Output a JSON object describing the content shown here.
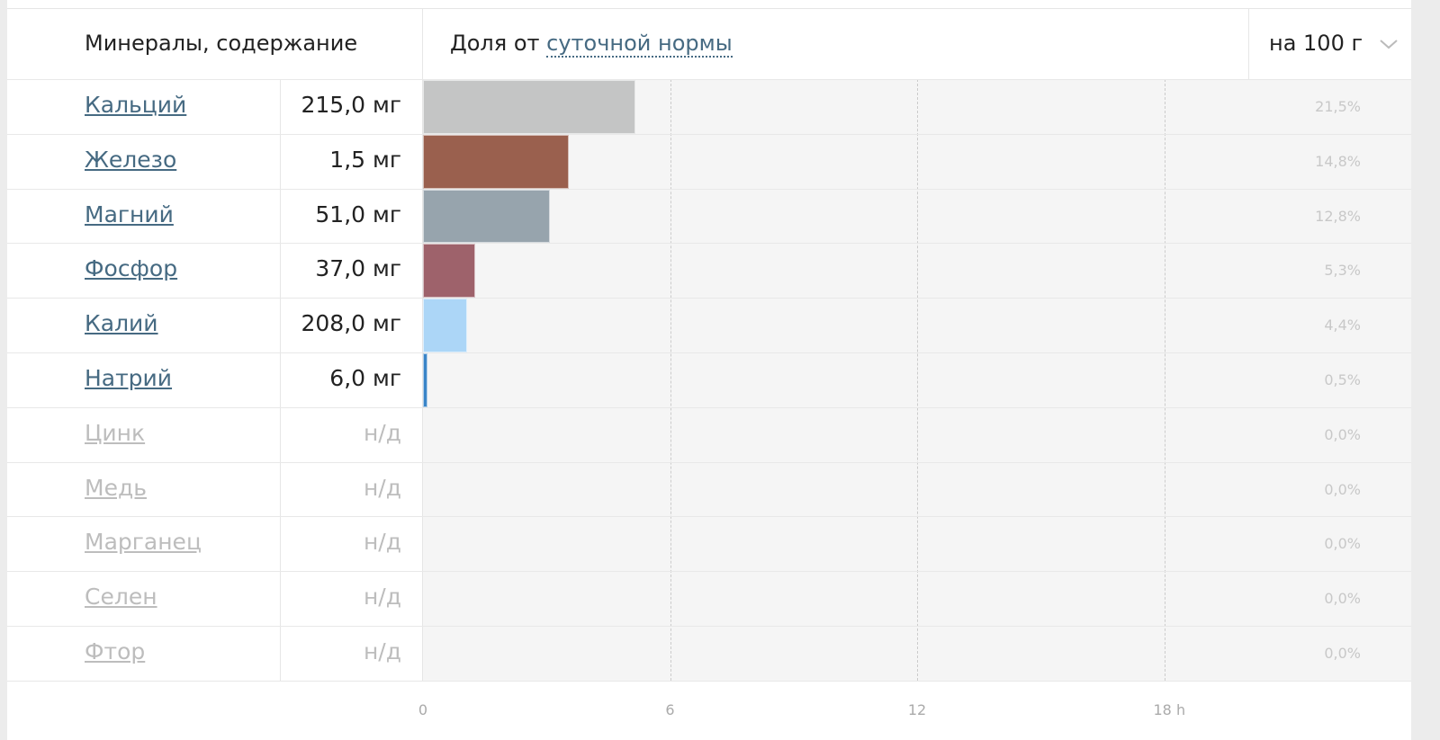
{
  "header": {
    "title": "Минералы, содержание",
    "share_prefix": "Доля от",
    "share_link": "суточной нормы",
    "per": "на 100 г"
  },
  "chart_data": {
    "type": "bar",
    "orientation": "horizontal",
    "categories": [
      "Кальций",
      "Железо",
      "Магний",
      "Фосфор",
      "Калий",
      "Натрий",
      "Цинк",
      "Медь",
      "Марганец",
      "Селен",
      "Фтор"
    ],
    "amounts": [
      "215,0 мг",
      "1,5 мг",
      "51,0 мг",
      "37,0 мг",
      "208,0 мг",
      "6,0 мг",
      "н/д",
      "н/д",
      "н/д",
      "н/д",
      "н/д"
    ],
    "values": [
      5.15,
      3.54,
      3.08,
      1.27,
      1.07,
      0.12,
      null,
      null,
      null,
      null,
      null
    ],
    "percent_labels": [
      "21,5%",
      "14,8%",
      "12,8%",
      "5,3%",
      "4,4%",
      "0,5%",
      "0,0%",
      "0,0%",
      "0,0%",
      "0,0%",
      "0,0%"
    ],
    "colors": [
      "#c4c5c5",
      "#9a604e",
      "#97a4ad",
      "#9e626b",
      "#acd6f7",
      "#3a85c8",
      null,
      null,
      null,
      null,
      null
    ],
    "xlim": [
      0,
      24
    ],
    "xticks": [
      0,
      6,
      12,
      {
        "value": 18,
        "label": "18 h"
      }
    ],
    "grid": true
  }
}
